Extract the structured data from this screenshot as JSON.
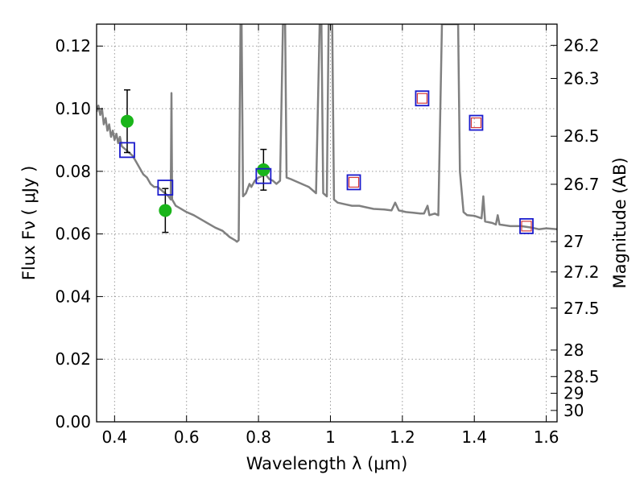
{
  "chart_data": {
    "type": "scatter",
    "xlabel": "Wavelength  λ (μm)",
    "ylabel": "Flux  Fν  ( μJy )",
    "y2label": "Magnitude (AB)",
    "xlim": [
      0.35,
      1.63
    ],
    "ylim": [
      0.0,
      0.127
    ],
    "grid": true,
    "x_ticks": [
      0.4,
      0.6,
      0.8,
      1.0,
      1.2,
      1.4,
      1.6
    ],
    "x_tick_labels": [
      "0.4",
      "0.6",
      "0.8",
      "1",
      "1.2",
      "1.4",
      "1.6"
    ],
    "y_ticks": [
      0.0,
      0.02,
      0.04,
      0.06,
      0.08,
      0.1,
      0.12
    ],
    "y_tick_labels": [
      "0.00",
      "0.02",
      "0.04",
      "0.06",
      "0.08",
      "0.10",
      "0.12"
    ],
    "y2_ticks": [
      {
        "label": "26.2",
        "mag": 26.2
      },
      {
        "label": "26.3",
        "mag": 26.3
      },
      {
        "label": "26.5",
        "mag": 26.5
      },
      {
        "label": "26.7",
        "mag": 26.7
      },
      {
        "label": "27",
        "mag": 27.0
      },
      {
        "label": "27.2",
        "mag": 27.2
      },
      {
        "label": "27.5",
        "mag": 27.5
      },
      {
        "label": "28",
        "mag": 28.0
      },
      {
        "label": "28.5",
        "mag": 28.5
      },
      {
        "label": "29",
        "mag": 29.0
      },
      {
        "label": "30",
        "mag": 30.0
      }
    ],
    "colors": {
      "spectrum": "#808080",
      "observed": "#1ab51a",
      "model_box": "#1a1acc",
      "model_inner": "#d43a3a",
      "errorbar": "#000000"
    },
    "series": [
      {
        "kind": "line",
        "points": [
          [
            0.35,
            0.099
          ],
          [
            0.355,
            0.101
          ],
          [
            0.36,
            0.098
          ],
          [
            0.365,
            0.1
          ],
          [
            0.37,
            0.095
          ],
          [
            0.375,
            0.097
          ],
          [
            0.38,
            0.093
          ],
          [
            0.385,
            0.095
          ],
          [
            0.39,
            0.091
          ],
          [
            0.395,
            0.093
          ],
          [
            0.4,
            0.09
          ],
          [
            0.405,
            0.092
          ],
          [
            0.41,
            0.089
          ],
          [
            0.415,
            0.091
          ],
          [
            0.42,
            0.088
          ],
          [
            0.43,
            0.087
          ],
          [
            0.44,
            0.086
          ],
          [
            0.45,
            0.085
          ],
          [
            0.46,
            0.083
          ],
          [
            0.47,
            0.081
          ],
          [
            0.48,
            0.079
          ],
          [
            0.49,
            0.078
          ],
          [
            0.5,
            0.076
          ],
          [
            0.51,
            0.075
          ],
          [
            0.52,
            0.075
          ],
          [
            0.53,
            0.074
          ],
          [
            0.54,
            0.073
          ],
          [
            0.55,
            0.072
          ],
          [
            0.556,
            0.071
          ],
          [
            0.558,
            0.105
          ],
          [
            0.56,
            0.071
          ],
          [
            0.57,
            0.069
          ],
          [
            0.6,
            0.067
          ],
          [
            0.62,
            0.066
          ],
          [
            0.65,
            0.064
          ],
          [
            0.68,
            0.062
          ],
          [
            0.7,
            0.061
          ],
          [
            0.72,
            0.059
          ],
          [
            0.735,
            0.058
          ],
          [
            0.74,
            0.0575
          ],
          [
            0.745,
            0.058
          ],
          [
            0.75,
            0.127
          ],
          [
            0.753,
            0.127
          ],
          [
            0.757,
            0.072
          ],
          [
            0.765,
            0.073
          ],
          [
            0.775,
            0.076
          ],
          [
            0.78,
            0.075
          ],
          [
            0.79,
            0.077
          ],
          [
            0.8,
            0.078
          ],
          [
            0.81,
            0.0785
          ],
          [
            0.82,
            0.079
          ],
          [
            0.83,
            0.0775
          ],
          [
            0.84,
            0.077
          ],
          [
            0.85,
            0.076
          ],
          [
            0.86,
            0.077
          ],
          [
            0.868,
            0.127
          ],
          [
            0.874,
            0.127
          ],
          [
            0.878,
            0.078
          ],
          [
            0.89,
            0.0775
          ],
          [
            0.9,
            0.077
          ],
          [
            0.92,
            0.076
          ],
          [
            0.94,
            0.075
          ],
          [
            0.96,
            0.073
          ],
          [
            0.97,
            0.127
          ],
          [
            0.975,
            0.127
          ],
          [
            0.98,
            0.073
          ],
          [
            0.99,
            0.072
          ],
          [
            0.995,
            0.127
          ],
          [
            1.005,
            0.127
          ],
          [
            1.01,
            0.071
          ],
          [
            1.02,
            0.07
          ],
          [
            1.04,
            0.0695
          ],
          [
            1.06,
            0.069
          ],
          [
            1.08,
            0.069
          ],
          [
            1.1,
            0.0685
          ],
          [
            1.12,
            0.068
          ],
          [
            1.15,
            0.0678
          ],
          [
            1.17,
            0.0675
          ],
          [
            1.18,
            0.07
          ],
          [
            1.19,
            0.0675
          ],
          [
            1.21,
            0.067
          ],
          [
            1.23,
            0.0668
          ],
          [
            1.25,
            0.0665
          ],
          [
            1.26,
            0.0665
          ],
          [
            1.27,
            0.069
          ],
          [
            1.275,
            0.066
          ],
          [
            1.29,
            0.0665
          ],
          [
            1.3,
            0.066
          ],
          [
            1.31,
            0.127
          ],
          [
            1.34,
            0.127
          ],
          [
            1.345,
            0.127
          ],
          [
            1.355,
            0.127
          ],
          [
            1.36,
            0.08
          ],
          [
            1.37,
            0.067
          ],
          [
            1.38,
            0.066
          ],
          [
            1.4,
            0.0658
          ],
          [
            1.42,
            0.065
          ],
          [
            1.425,
            0.072
          ],
          [
            1.43,
            0.064
          ],
          [
            1.45,
            0.0635
          ],
          [
            1.46,
            0.063
          ],
          [
            1.465,
            0.066
          ],
          [
            1.47,
            0.063
          ],
          [
            1.5,
            0.0625
          ],
          [
            1.53,
            0.0625
          ],
          [
            1.56,
            0.062
          ],
          [
            1.58,
            0.0615
          ],
          [
            1.6,
            0.0618
          ],
          [
            1.63,
            0.0615
          ]
        ]
      },
      {
        "kind": "observed",
        "points": [
          {
            "x": 0.435,
            "y": 0.096,
            "yerr": 0.01
          },
          {
            "x": 0.541,
            "y": 0.0675,
            "yerr": 0.007
          },
          {
            "x": 0.814,
            "y": 0.0805,
            "yerr": 0.0065
          }
        ]
      },
      {
        "kind": "model",
        "points": [
          {
            "x": 0.435,
            "y": 0.0868
          },
          {
            "x": 0.541,
            "y": 0.0748
          },
          {
            "x": 0.814,
            "y": 0.0785
          }
        ]
      },
      {
        "kind": "model_inner",
        "points": [
          {
            "x": 1.065,
            "y": 0.0765
          },
          {
            "x": 1.255,
            "y": 0.1033
          },
          {
            "x": 1.405,
            "y": 0.0955
          },
          {
            "x": 1.545,
            "y": 0.0625
          }
        ]
      }
    ]
  }
}
